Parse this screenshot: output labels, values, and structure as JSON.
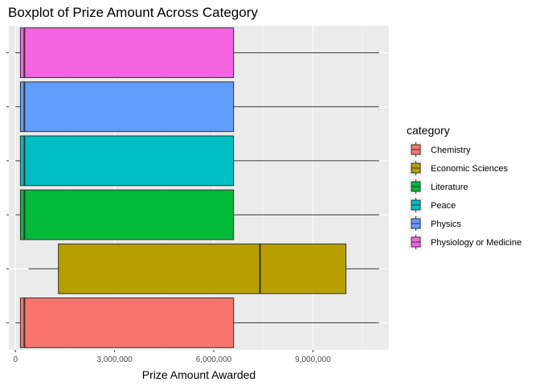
{
  "chart_data": {
    "type": "boxplot",
    "orientation": "horizontal",
    "title": "Boxplot of Prize Amount Across Category",
    "xlabel": "Prize Amount Awarded",
    "ylabel": "",
    "xlim": [
      -200000,
      11300000
    ],
    "x_ticks": [
      0,
      3000000,
      6000000,
      9000000
    ],
    "x_tick_labels": [
      "0",
      "3,000,000",
      "6,000,000",
      "9,000,000"
    ],
    "grid": true,
    "legend": {
      "title": "category",
      "position": "right"
    },
    "categories": [
      "Chemistry",
      "Economic Sciences",
      "Literature",
      "Peace",
      "Physics",
      "Physiology or Medicine"
    ],
    "series": [
      {
        "name": "Chemistry",
        "color": "#F8766D",
        "whisker_low": 0,
        "q1": 150000,
        "median": 270000,
        "q3": 6600000,
        "whisker_high": 11000000
      },
      {
        "name": "Economic Sciences",
        "color": "#B79F00",
        "whisker_low": 400000,
        "q1": 1300000,
        "median": 7400000,
        "q3": 10000000,
        "whisker_high": 11000000
      },
      {
        "name": "Literature",
        "color": "#00BA38",
        "whisker_low": 0,
        "q1": 150000,
        "median": 270000,
        "q3": 6600000,
        "whisker_high": 11000000
      },
      {
        "name": "Peace",
        "color": "#00BFC4",
        "whisker_low": 0,
        "q1": 150000,
        "median": 270000,
        "q3": 6600000,
        "whisker_high": 11000000
      },
      {
        "name": "Physics",
        "color": "#619CFF",
        "whisker_low": 0,
        "q1": 150000,
        "median": 270000,
        "q3": 6600000,
        "whisker_high": 11000000
      },
      {
        "name": "Physiology or Medicine",
        "color": "#F564E3",
        "whisker_low": 0,
        "q1": 150000,
        "median": 270000,
        "q3": 6600000,
        "whisker_high": 11000000
      }
    ]
  }
}
